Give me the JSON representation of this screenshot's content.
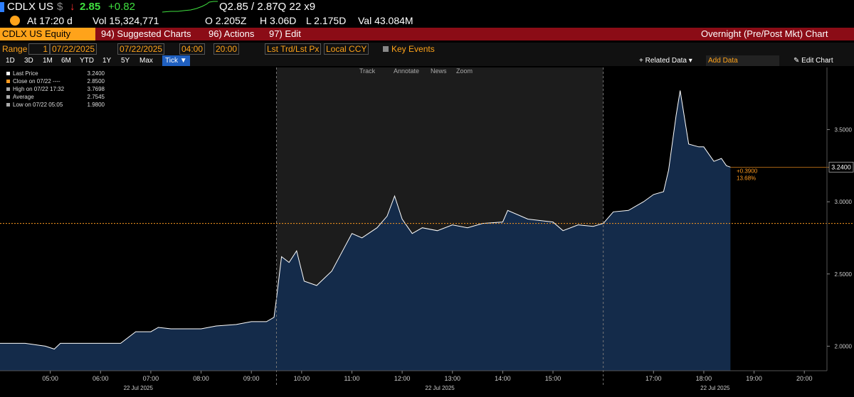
{
  "header": {
    "ticker": "CDLX US",
    "currency": "$",
    "arrow": "↓",
    "last": "2.85",
    "change": "+0.82",
    "quote": "Q2.85 / 2.87Q 22 x9"
  },
  "stats": [
    "At 17:20 d",
    "Vol 15,324,771",
    "O 2.205Z",
    "H 3.06D",
    "L 2.175D",
    "Val 43.084M"
  ],
  "menu": {
    "security": "CDLX US Equity",
    "items": [
      "94) Suggested Charts",
      "96) Actions",
      "97) Edit"
    ],
    "title": "Overnight (Pre/Post Mkt) Chart"
  },
  "controls": {
    "range_label": "Range",
    "range": "1",
    "start": "07/22/2025",
    "end": "07/22/2025",
    "from": "04:00",
    "to": "20:00",
    "price": "Lst Trd/Lst Px",
    "ccy": "Local CCY",
    "events": "Key Events"
  },
  "periods": [
    "1D",
    "3D",
    "1M",
    "6M",
    "YTD",
    "1Y",
    "5Y",
    "Max",
    "Tick ▼"
  ],
  "tools": {
    "related": "+ Related Data ▾",
    "add": "Add Data",
    "edit": "✎ Edit Chart"
  },
  "chart_tools": [
    "Track",
    "Annotate",
    "News",
    "Zoom"
  ],
  "chart_data": {
    "type": "line",
    "legend": [
      {
        "label": "Last Price",
        "value": "3.2400"
      },
      {
        "label": "Close on 07/22 ----",
        "value": "2.8500"
      },
      {
        "label": "High on 07/22 17:32",
        "value": "3.7698"
      },
      {
        "label": "Average",
        "value": "2.7545"
      },
      {
        "label": "Low on 07/22 05:05",
        "value": "1.9800"
      }
    ],
    "x": [
      4.0,
      4.5,
      4.9,
      5.08,
      5.2,
      6.0,
      6.4,
      6.7,
      7.0,
      7.15,
      7.4,
      8.0,
      8.3,
      8.7,
      9.0,
      9.3,
      9.45,
      9.5,
      9.6,
      9.75,
      9.9,
      10.05,
      10.3,
      10.6,
      10.8,
      11.0,
      11.2,
      11.5,
      11.7,
      11.85,
      12.0,
      12.2,
      12.4,
      12.7,
      13.0,
      13.3,
      13.6,
      14.0,
      14.1,
      14.5,
      15.0,
      15.2,
      15.5,
      15.8,
      16.0,
      16.2,
      16.5,
      16.8,
      17.0,
      17.2,
      17.3,
      17.45,
      17.53,
      17.7,
      17.9,
      18.0,
      18.2,
      18.35,
      18.45,
      18.53
    ],
    "series": [
      {
        "name": "Last Price",
        "color": "#ffffff",
        "values": [
          2.02,
          2.02,
          2.0,
          1.98,
          2.02,
          2.02,
          2.02,
          2.1,
          2.1,
          2.13,
          2.12,
          2.12,
          2.14,
          2.15,
          2.17,
          2.17,
          2.2,
          2.33,
          2.62,
          2.58,
          2.66,
          2.45,
          2.42,
          2.52,
          2.65,
          2.78,
          2.75,
          2.82,
          2.9,
          3.04,
          2.88,
          2.78,
          2.82,
          2.8,
          2.84,
          2.82,
          2.85,
          2.86,
          2.94,
          2.88,
          2.86,
          2.8,
          2.84,
          2.83,
          2.85,
          2.93,
          2.94,
          3.0,
          3.05,
          3.07,
          3.22,
          3.6,
          3.77,
          3.4,
          3.38,
          3.38,
          3.28,
          3.3,
          3.25,
          3.24
        ]
      }
    ],
    "area_color": "#142b4a",
    "close_level": 2.85,
    "close_color": "#ff9a1f",
    "sessions": [
      9.5,
      16
    ],
    "last_label": {
      "value": 3.24,
      "label": "3.2400"
    },
    "change_label": "+0.3900",
    "pct_label": "13.68%",
    "date_labels": [
      "22 Jul 2025",
      "22 Jul 2025",
      "22 Jul 2025"
    ],
    "xlim": [
      4,
      20.45
    ],
    "xticks": [
      {
        "value": 5,
        "label": "05:00"
      },
      {
        "value": 6,
        "label": "06:00"
      },
      {
        "value": 7,
        "label": "07:00"
      },
      {
        "value": 8,
        "label": "08:00"
      },
      {
        "value": 9,
        "label": "09:00"
      },
      {
        "value": 10,
        "label": "10:00"
      },
      {
        "value": 11,
        "label": "11:00"
      },
      {
        "value": 12,
        "label": "12:00"
      },
      {
        "value": 13,
        "label": "13:00"
      },
      {
        "value": 14,
        "label": "14:00"
      },
      {
        "value": 15,
        "label": "15:00"
      },
      {
        "value": 17,
        "label": "17:00"
      },
      {
        "value": 18,
        "label": "18:00"
      },
      {
        "value": 19,
        "label": "19:00"
      },
      {
        "value": 20,
        "label": "20:00"
      }
    ],
    "ylim": [
      1.83,
      3.93
    ],
    "yticks": [
      {
        "value": 2,
        "label": "2.0000"
      },
      {
        "value": 2.5,
        "label": "2.5000"
      },
      {
        "value": 3,
        "label": "3.0000"
      },
      {
        "value": 3.5,
        "label": "3.5000"
      }
    ]
  }
}
